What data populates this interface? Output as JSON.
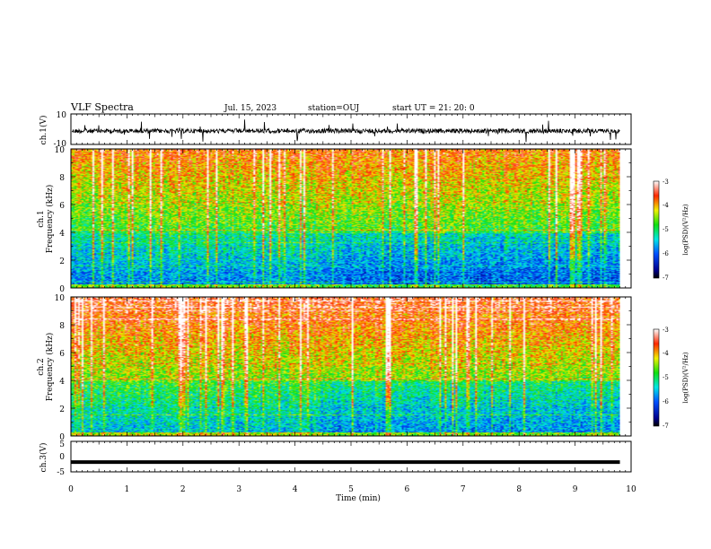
{
  "header": {
    "title": "VLF Spectra",
    "date": "Jul. 15, 2023",
    "station": "station=OUJ",
    "start": "start  UT =  21: 20: 0"
  },
  "chart_data": [
    {
      "type": "line",
      "panel": "ch1-waveform",
      "ylabel": "ch.1(V)",
      "ylim": [
        -10,
        10
      ],
      "yticks": [
        "10",
        "-10"
      ],
      "xlim": [
        0,
        10
      ],
      "color": "#000000"
    },
    {
      "type": "heatmap",
      "panel": "ch1-spectrogram",
      "ylabel": "Frequency (kHz)",
      "chlabel": "ch.1",
      "ylim": [
        0,
        10
      ],
      "yticks": [
        "0",
        "2",
        "4",
        "6",
        "8",
        "10"
      ],
      "xlim": [
        0,
        9.8
      ],
      "colorbar": {
        "label": "log(PSD)(V²/Hz)",
        "range": [
          -7,
          -3
        ],
        "ticks": [
          "-3",
          "-4",
          "-5",
          "-6",
          "-7"
        ]
      }
    },
    {
      "type": "heatmap",
      "panel": "ch2-spectrogram",
      "ylabel": "Frequency (kHz)",
      "chlabel": "ch.2",
      "ylim": [
        0,
        10
      ],
      "yticks": [
        "0",
        "2",
        "4",
        "6",
        "8",
        "10"
      ],
      "xlim": [
        0,
        9.8
      ],
      "colorbar": {
        "label": "log(PSD)(V²/Hz)",
        "range": [
          -7,
          -3
        ],
        "ticks": [
          "-3",
          "-4",
          "-5",
          "-6",
          "-7"
        ]
      }
    },
    {
      "type": "line",
      "panel": "ch3-waveform",
      "ylabel": "ch.3(V)",
      "ylim": [
        -5,
        5
      ],
      "yticks": [
        "5",
        "0",
        "-5"
      ],
      "x": [
        0,
        9.8
      ],
      "y": [
        -1.8,
        -1.8
      ],
      "color": "#000000"
    }
  ],
  "xaxis": {
    "label": "Time (min)",
    "ticks": [
      "0",
      "1",
      "2",
      "3",
      "4",
      "5",
      "6",
      "7",
      "8",
      "9",
      "10"
    ]
  }
}
